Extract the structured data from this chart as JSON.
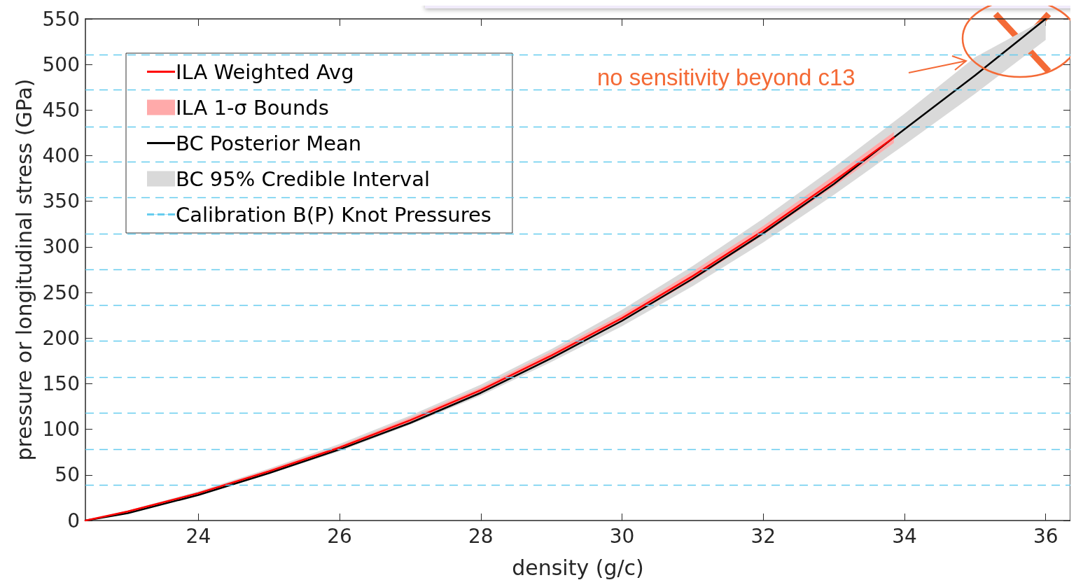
{
  "chart_data": {
    "type": "line",
    "xlabel": "density (g/c)",
    "ylabel": "pressure or longitudinal stress (GPa)",
    "xlim": [
      22.4,
      36.35
    ],
    "xticks": [
      24,
      26,
      28,
      30,
      32,
      34,
      36
    ],
    "ylim": [
      0,
      550
    ],
    "yticks": [
      0,
      50,
      100,
      150,
      200,
      250,
      300,
      350,
      400,
      450,
      500,
      550
    ],
    "legend": "top left",
    "annotations": [
      "no sensitivity beyond c13"
    ],
    "series": [
      {
        "name": "BC 95% Credible Interval",
        "type": "area",
        "color": "#d9d9d9"
      },
      {
        "name": "ILA 1-σ Bounds",
        "type": "area",
        "color": "#ffaaaa"
      },
      {
        "name": "BC Posterior Mean",
        "color": "#000000",
        "x": [
          22.4,
          23,
          24,
          25,
          26,
          27,
          28,
          29,
          30,
          31,
          32,
          33,
          34,
          35,
          36
        ],
        "values": [
          0,
          8,
          28,
          52,
          78,
          107,
          140,
          178,
          219,
          265,
          315,
          369,
          429,
          488,
          550
        ],
        "lower": [
          0,
          9,
          28,
          51,
          76,
          105,
          137,
          174,
          213,
          257,
          305,
          357,
          412,
          468,
          527
        ],
        "upper": [
          0,
          11,
          32,
          57,
          84,
          115,
          149,
          188,
          231,
          279,
          331,
          387,
          446,
          508,
          550
        ]
      },
      {
        "name": "ILA Weighted Avg",
        "color": "#ff0000",
        "x": [
          22.4,
          23,
          24,
          25,
          26,
          27,
          28,
          29,
          30,
          31,
          32,
          33,
          33.85
        ],
        "values": [
          0,
          10,
          30,
          54,
          80,
          110,
          143,
          181,
          222,
          268,
          318,
          372,
          420
        ],
        "lower": [
          0,
          9,
          29,
          52,
          78,
          107,
          140,
          177,
          218,
          263,
          313,
          366,
          414
        ],
        "upper": [
          0,
          11,
          31,
          56,
          82,
          113,
          146,
          185,
          226,
          273,
          323,
          378,
          426
        ]
      },
      {
        "name": "Calibration B(P) Knot Pressures",
        "color": "#66ccee",
        "line_style": "dashed"
      }
    ],
    "ref_lines": [
      {
        "axis": "y",
        "value": 39,
        "color": "#66ccee",
        "line_style": "dashed"
      },
      {
        "axis": "y",
        "value": 78,
        "color": "#66ccee",
        "line_style": "dashed"
      },
      {
        "axis": "y",
        "value": 118,
        "color": "#66ccee",
        "line_style": "dashed"
      },
      {
        "axis": "y",
        "value": 157,
        "color": "#66ccee",
        "line_style": "dashed"
      },
      {
        "axis": "y",
        "value": 197,
        "color": "#66ccee",
        "line_style": "dashed"
      },
      {
        "axis": "y",
        "value": 236,
        "color": "#66ccee",
        "line_style": "dashed"
      },
      {
        "axis": "y",
        "value": 275,
        "color": "#66ccee",
        "line_style": "dashed"
      },
      {
        "axis": "y",
        "value": 314,
        "color": "#66ccee",
        "line_style": "dashed"
      },
      {
        "axis": "y",
        "value": 354,
        "color": "#66ccee",
        "line_style": "dashed"
      },
      {
        "axis": "y",
        "value": 393,
        "color": "#66ccee",
        "line_style": "dashed"
      },
      {
        "axis": "y",
        "value": 432,
        "color": "#66ccee",
        "line_style": "dashed"
      },
      {
        "axis": "y",
        "value": 472,
        "color": "#66ccee",
        "line_style": "dashed"
      },
      {
        "axis": "y",
        "value": 511,
        "color": "#66ccee",
        "line_style": "dashed"
      }
    ]
  }
}
